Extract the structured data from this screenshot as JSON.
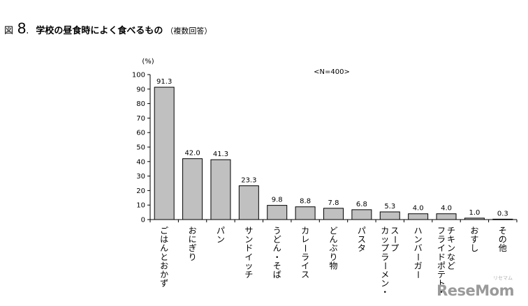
{
  "figure": {
    "prefix": "図",
    "number": "8",
    "dot": ".",
    "title": "学校の昼食時によく食べるもの",
    "subtitle": "（複数回答）"
  },
  "watermark": {
    "text": "ReseMom",
    "small": "リセマム"
  },
  "colors": {
    "bar": "#c0c0c0",
    "bar_edge": "#000000",
    "axis": "#000000"
  },
  "chart_data": {
    "type": "bar",
    "ylabel": "(%)",
    "annotation": "<N=400>",
    "ylim": [
      0,
      100
    ],
    "yticks": [
      0,
      10,
      20,
      30,
      40,
      50,
      60,
      70,
      80,
      90,
      100
    ],
    "grid": false,
    "categories": [
      "ごはんとおかず",
      "おにぎり",
      "パン",
      "サンドイッチ",
      "うどん・そば",
      "カレーライス",
      "どんぶり物",
      "パスタ",
      "スープ|カップラーメン・",
      "ハンバーガー",
      "チキンなど|フライドポテト・",
      "おすし",
      "その他"
    ],
    "values": [
      91.3,
      42.0,
      41.3,
      23.3,
      9.8,
      8.8,
      7.8,
      6.8,
      5.3,
      4.0,
      4.0,
      1.0,
      0.3
    ],
    "value_labels": [
      "91.3",
      "42.0",
      "41.3",
      "23.3",
      "9.8",
      "8.8",
      "7.8",
      "6.8",
      "5.3",
      "4.0",
      "4.0",
      "1.0",
      "0.3"
    ]
  }
}
